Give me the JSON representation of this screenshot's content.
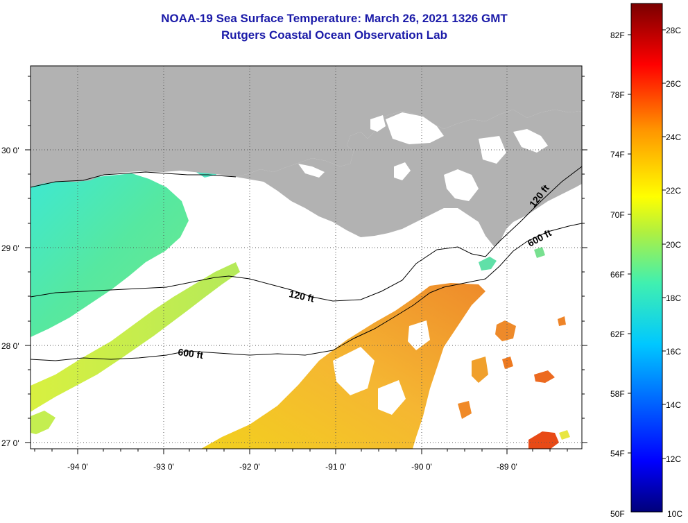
{
  "title": {
    "line1": "NOAA-19 Sea Surface Temperature:  March 26, 2021 1326 GMT",
    "line2": "Rutgers Coastal Ocean Observation Lab"
  },
  "axes": {
    "lon_labels": [
      "-94 0'",
      "-93 0'",
      "-92 0'",
      "-91 0'",
      "-90 0'",
      "-89 0'"
    ],
    "lat_labels": [
      "30 0'",
      "29 0'",
      "28 0'",
      "27 0'"
    ]
  },
  "contours": {
    "shelf_120": "120 ft",
    "slope_600": "600 ft"
  },
  "colorbar": {
    "fahrenheit": [
      "82F",
      "78F",
      "74F",
      "70F",
      "66F",
      "62F",
      "58F",
      "54F",
      "50F"
    ],
    "celsius": [
      "28C",
      "26C",
      "24C",
      "22C",
      "20C",
      "18C",
      "16C",
      "14C",
      "12C",
      "10C"
    ]
  },
  "colors": {
    "title": "#1a1aa8",
    "land": "#b2b2b2",
    "cloud": "#ffffff",
    "sst_cool": "#46e6c8",
    "sst_mid": "#c8f050",
    "sst_warm": "#f0b428"
  }
}
